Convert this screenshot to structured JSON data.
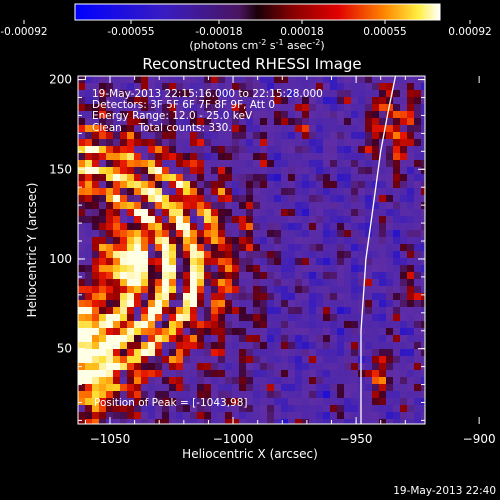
{
  "colorbar": {
    "ticks": [
      "-0.00092",
      "-0.00055",
      "-0.00018",
      "0.00018",
      "0.00055",
      "0.00092"
    ],
    "units_prefix": "(photons cm",
    "units_sup1": "-2",
    "units_mid1": " s",
    "units_sup2": "-1",
    "units_mid2": " asec",
    "units_sup3": "-2",
    "units_suffix": ")"
  },
  "chart_data": {
    "type": "heatmap",
    "title": "Reconstructed RHESSI Image",
    "xlabel": "Heliocentric X (arcsec)",
    "ylabel": "Heliocentric Y (arcsec)",
    "xlim": [
      -1063,
      -922
    ],
    "ylim": [
      8,
      202
    ],
    "x_ticks": [
      -1050,
      -1000,
      -950,
      -900
    ],
    "x_tick_labels": [
      "−1050",
      "−1000",
      "−950",
      "−900"
    ],
    "y_ticks": [
      50,
      100,
      150,
      200
    ],
    "y_tick_labels": [
      "50",
      "100",
      "150",
      "200"
    ],
    "colorscale_range": [
      -0.00092,
      0.00092
    ],
    "peak": {
      "x": -1043,
      "y": 98
    },
    "limb_curve": [
      [
        -934,
        202
      ],
      [
        -937,
        182
      ],
      [
        -940,
        160
      ],
      [
        -942,
        140
      ],
      [
        -944,
        120
      ],
      [
        -946,
        100
      ],
      [
        -947,
        80
      ],
      [
        -948,
        60
      ],
      [
        -948,
        40
      ],
      [
        -948,
        8
      ]
    ],
    "annotations": [
      "19-May-2013 22:15:16.000 to 22:15:28.000",
      "Detectors: 3F 5F 6F 7F 8F 9F, Att 0",
      "Energy Range: 12.0 - 25.0 keV",
      "Clean     Total counts: 330.",
      "Position of Peak = [-1043,98]"
    ]
  },
  "footer_timestamp": "19-May-2013 22:40"
}
